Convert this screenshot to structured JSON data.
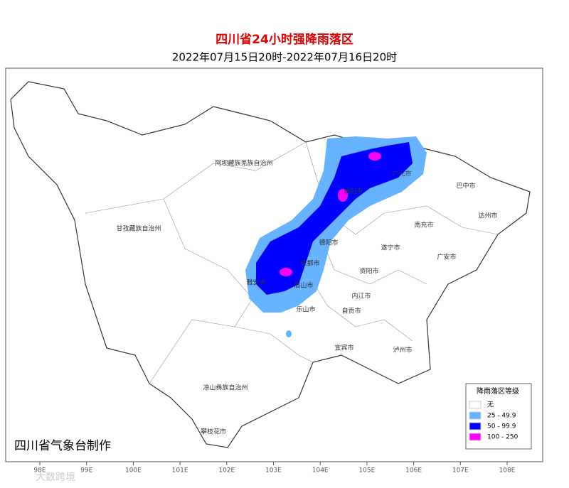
{
  "header": {
    "title": "四川省24小时强降雨落区",
    "subtitle": "2022年07月15日20时-2022年07月16日20时"
  },
  "places": [
    "阿坝藏族羌族自治州",
    "甘孜藏族自治州",
    "凉山彝族自治州",
    "攀枝花市",
    "广元市",
    "巴中市",
    "达州市",
    "南充市",
    "绵阳市",
    "德阳市",
    "遂宁市",
    "广安市",
    "成都市",
    "资阳市",
    "雅安市",
    "眉山市",
    "内江市",
    "乐山市",
    "自贡市",
    "宜宾市",
    "泸州市"
  ],
  "longitudes": [
    "98E",
    "99E",
    "100E",
    "101E",
    "102E",
    "103E",
    "104E",
    "105E",
    "106E",
    "107E",
    "108E"
  ],
  "legend": {
    "title": "降雨落区等级",
    "items": [
      {
        "label": "无",
        "color": "#ffffff"
      },
      {
        "label": "25 - 49.9",
        "color": "#66b3ff"
      },
      {
        "label": "50 - 99.9",
        "color": "#0000ff"
      },
      {
        "label": "100 - 250",
        "color": "#ff00ff"
      }
    ]
  },
  "producer": "四川省气象台制作",
  "watermark": "大数跨境"
}
